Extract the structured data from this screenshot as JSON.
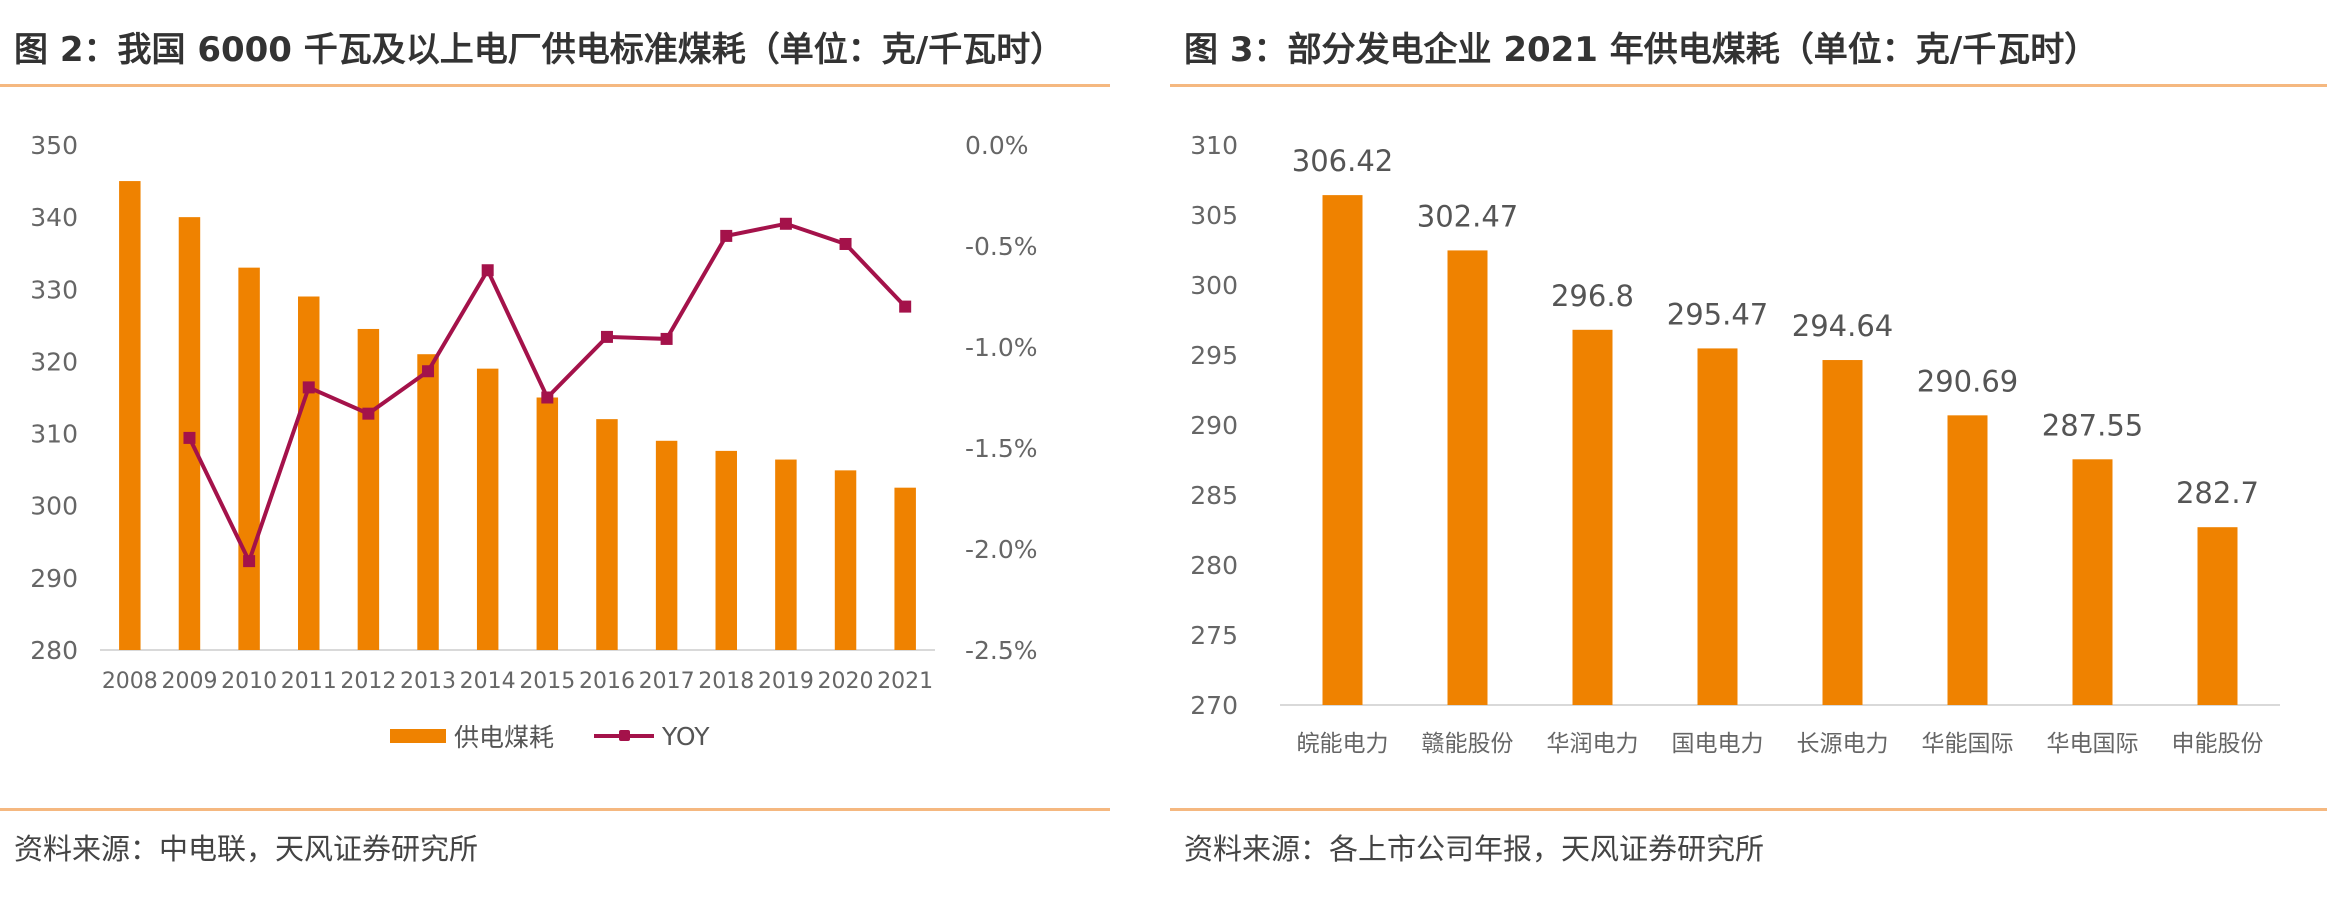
{
  "colors": {
    "bar": "#ef8200",
    "line": "#a4124a",
    "axis": "#d9d9d9",
    "rule": "#f5b880"
  },
  "left": {
    "title": "图 2：我国 6000 千瓦及以上电厂供电标准煤耗（单位：克/千瓦时）",
    "source": "资料来源：中电联，天风证券研究所",
    "legend": {
      "bar_label": "供电煤耗",
      "line_label": "YOY"
    }
  },
  "right": {
    "title": "图 3：部分发电企业 2021 年供电煤耗（单位：克/千瓦时）",
    "source": "资料来源：各上市公司年报，天风证券研究所"
  },
  "chart_data": [
    {
      "type": "bar",
      "categories": [
        "2008",
        "2009",
        "2010",
        "2011",
        "2012",
        "2013",
        "2014",
        "2015",
        "2016",
        "2017",
        "2018",
        "2019",
        "2020",
        "2021"
      ],
      "series": [
        {
          "name": "供电煤耗",
          "type": "bar",
          "axis": "left",
          "values": [
            345,
            340,
            333,
            329,
            324.5,
            321,
            319,
            315,
            312,
            309,
            307.6,
            306.4,
            304.9,
            302.5
          ]
        },
        {
          "name": "YOY",
          "type": "line",
          "axis": "right",
          "unit": "%",
          "values": [
            null,
            -1.45,
            -2.06,
            -1.2,
            -1.33,
            -1.12,
            -0.62,
            -1.25,
            -0.95,
            -0.96,
            -0.45,
            -0.39,
            -0.49,
            -0.8
          ]
        }
      ],
      "ylim": [
        280,
        350
      ],
      "yticks": [
        "350",
        "340",
        "330",
        "320",
        "310",
        "300",
        "290",
        "280"
      ],
      "y2lim": [
        -2.5,
        0
      ],
      "y2ticks": [
        "0.0%",
        "-0.5%",
        "-1.0%",
        "-1.5%",
        "-2.0%",
        "-2.5%"
      ],
      "legend": "bottom",
      "grid": false
    },
    {
      "type": "bar",
      "categories": [
        "皖能电力",
        "赣能股份",
        "华润电力",
        "国电电力",
        "长源电力",
        "华能国际",
        "华电国际",
        "申能股份"
      ],
      "values": [
        306.42,
        302.47,
        296.8,
        295.47,
        294.64,
        290.69,
        287.55,
        282.7
      ],
      "data_labels": [
        "306.42",
        "302.47",
        "296.8",
        "295.47",
        "294.64",
        "290.69",
        "287.55",
        "282.7"
      ],
      "ylim": [
        270,
        310
      ],
      "yticks": [
        "310",
        "305",
        "300",
        "295",
        "290",
        "285",
        "280",
        "275",
        "270"
      ],
      "grid": false
    }
  ]
}
